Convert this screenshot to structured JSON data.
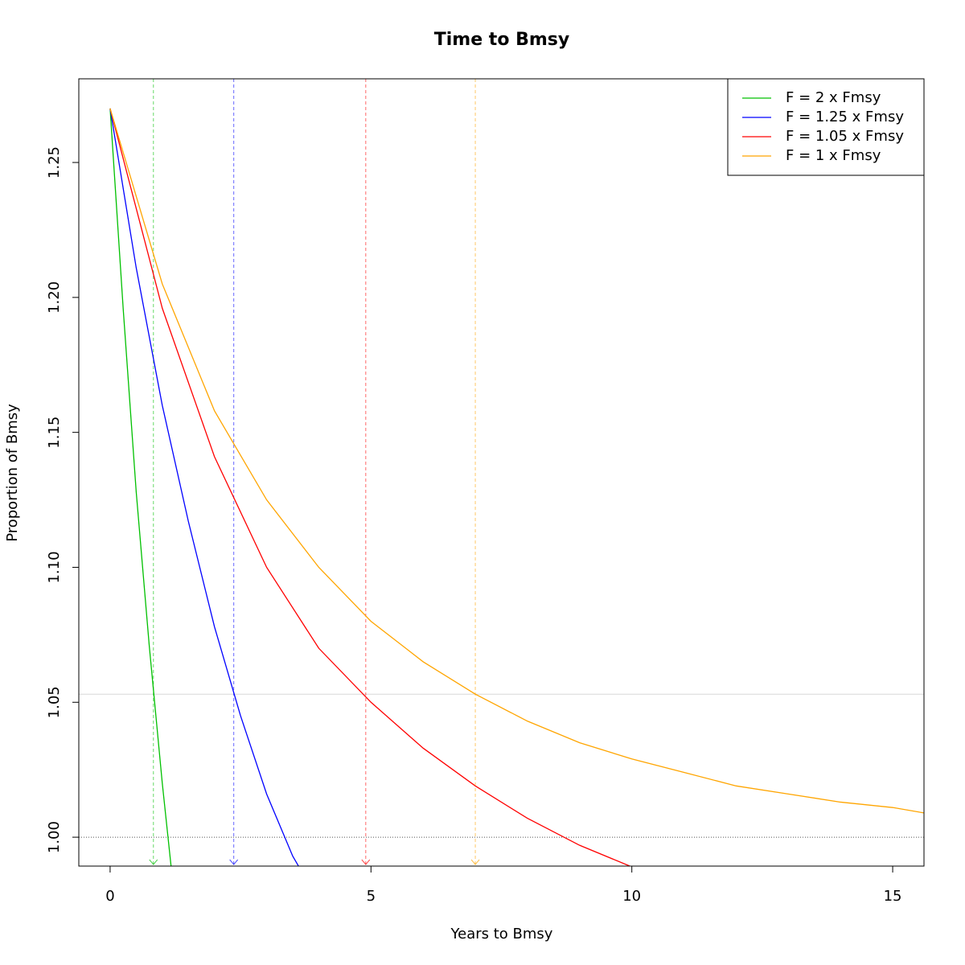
{
  "chart_data": {
    "type": "line",
    "title": "Time to Bmsy",
    "x_label": "Years to Bmsy",
    "y_label": "Proportion of Bmsy",
    "xlim": [
      -0.6,
      15.6
    ],
    "ylim": [
      0.9893,
      1.281
    ],
    "xticks": [
      0,
      5,
      10,
      15
    ],
    "yticks": [
      {
        "value": 1.0,
        "label": "1.00"
      },
      1.05,
      {
        "value": 1.1,
        "label": "1.10"
      },
      1.15,
      {
        "value": 1.2,
        "label": "1.20"
      },
      1.25
    ],
    "legend": "topright",
    "target": 1.053,
    "baseline": 1.0,
    "series": [
      {
        "name": "F = 2 x Fmsy",
        "color": "#00c000",
        "x": [
          0,
          0.25,
          0.5,
          0.75,
          1.0,
          1.17
        ],
        "values": [
          1.27,
          1.196,
          1.128,
          1.071,
          1.02,
          0.989
        ],
        "time_to_target": 0.83
      },
      {
        "name": "F = 1.25 x Fmsy",
        "color": "#0000ff",
        "x": [
          0,
          0.5,
          1,
          1.5,
          2,
          2.5,
          3,
          3.5,
          3.62
        ],
        "values": [
          1.27,
          1.211,
          1.16,
          1.117,
          1.078,
          1.045,
          1.016,
          0.993,
          0.989
        ],
        "time_to_target": 2.37
      },
      {
        "name": "F = 1.05 x Fmsy",
        "color": "#ff0000",
        "x": [
          0,
          1,
          2,
          3,
          4,
          5,
          6,
          7,
          8,
          9,
          10
        ],
        "values": [
          1.27,
          1.196,
          1.141,
          1.1,
          1.07,
          1.05,
          1.033,
          1.019,
          1.007,
          0.997,
          0.989
        ],
        "time_to_target": 4.9
      },
      {
        "name": "F = 1 x Fmsy",
        "color": "#ffa500",
        "x": [
          0,
          1,
          2,
          3,
          4,
          5,
          6,
          7,
          8,
          9,
          10,
          11,
          12,
          13,
          14,
          15,
          15.6
        ],
        "values": [
          1.27,
          1.205,
          1.158,
          1.125,
          1.1,
          1.08,
          1.065,
          1.053,
          1.043,
          1.035,
          1.029,
          1.024,
          1.019,
          1.016,
          1.013,
          1.011,
          1.009
        ],
        "time_to_target": 7.0
      }
    ]
  }
}
